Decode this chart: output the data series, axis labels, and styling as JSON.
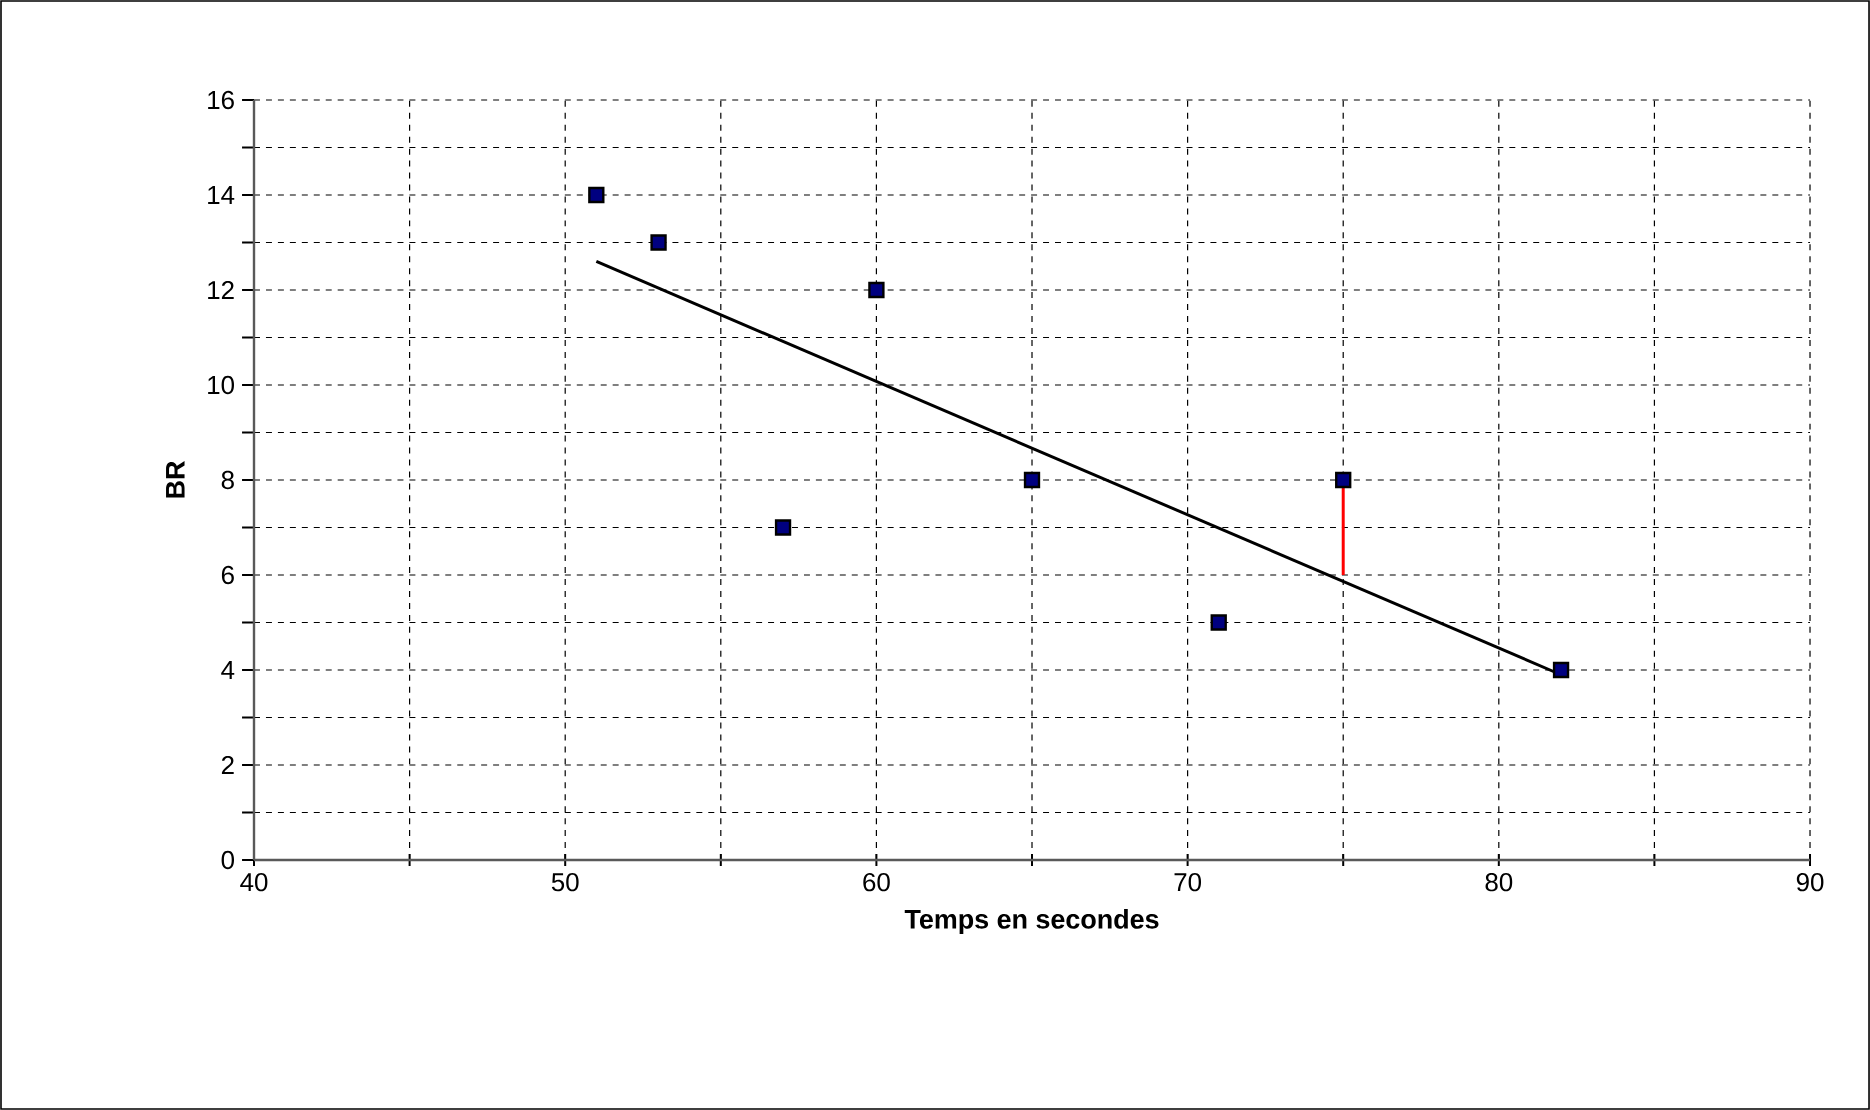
{
  "chart_data": {
    "type": "scatter",
    "xlabel": "Temps en secondes",
    "ylabel": "BR",
    "xlim": [
      40,
      90
    ],
    "xticks": [
      40,
      50,
      60,
      70,
      80,
      90
    ],
    "ylim": [
      0,
      16
    ],
    "yticks": [
      0,
      2,
      4,
      6,
      8,
      10,
      12,
      14,
      16
    ],
    "grid": true,
    "marker": "square",
    "series": [
      {
        "color": "#000080",
        "x": [
          51,
          53,
          57,
          60,
          65,
          71,
          75,
          82
        ],
        "values": [
          14,
          13,
          7,
          12,
          8,
          5,
          8,
          4
        ]
      },
      {
        "type": "line",
        "marker": "none",
        "color": "#000000",
        "x": [
          51,
          82
        ],
        "values": [
          12.6,
          3.9
        ]
      },
      {
        "type": "line",
        "marker": "none",
        "color": "#ff0000",
        "x": [
          75,
          75
        ],
        "values": [
          8,
          6
        ]
      }
    ]
  }
}
